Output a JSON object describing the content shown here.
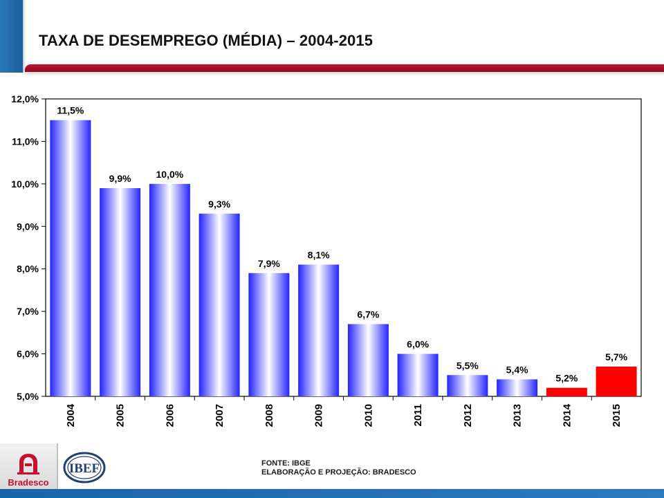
{
  "header": {
    "title": "TAXA DE DESEMPREGO (MÉDIA) – 2004-2015"
  },
  "chart_data": {
    "type": "bar",
    "title": "TAXA DE DESEMPREGO (MÉDIA) – 2004-2015",
    "xlabel": "",
    "ylabel": "",
    "categories": [
      "2004",
      "2005",
      "2006",
      "2007",
      "2008",
      "2009",
      "2010",
      "2011",
      "2012",
      "2013",
      "2014",
      "2015"
    ],
    "values": [
      11.5,
      9.9,
      10.0,
      9.3,
      7.9,
      8.1,
      6.7,
      6.0,
      5.5,
      5.4,
      5.2,
      5.7
    ],
    "value_labels": [
      "11,5%",
      "9,9%",
      "10,0%",
      "9,3%",
      "7,9%",
      "8,1%",
      "6,7%",
      "6,0%",
      "5,5%",
      "5,4%",
      "5,2%",
      "5,7%"
    ],
    "ylim": [
      5.0,
      12.0
    ],
    "yticks": [
      5.0,
      6.0,
      7.0,
      8.0,
      9.0,
      10.0,
      11.0,
      12.0
    ],
    "ytick_labels": [
      "5,0%",
      "6,0%",
      "7,0%",
      "8,0%",
      "9,0%",
      "10,0%",
      "11,0%",
      "12,0%"
    ],
    "projection_from_index": 10,
    "colors": {
      "actual_edge": "#2a2aff",
      "actual_center": "#ffffff",
      "projection": "#ff0000",
      "grid": "#000000"
    },
    "grid": false,
    "legend": "none"
  },
  "footer": {
    "source": "FONTE: IBGE",
    "elaboration": "ELABORAÇÃO E PROJEÇÃO: BRADESCO",
    "brand_name": "Bradesco",
    "partner_logo_text": "IBEF"
  }
}
